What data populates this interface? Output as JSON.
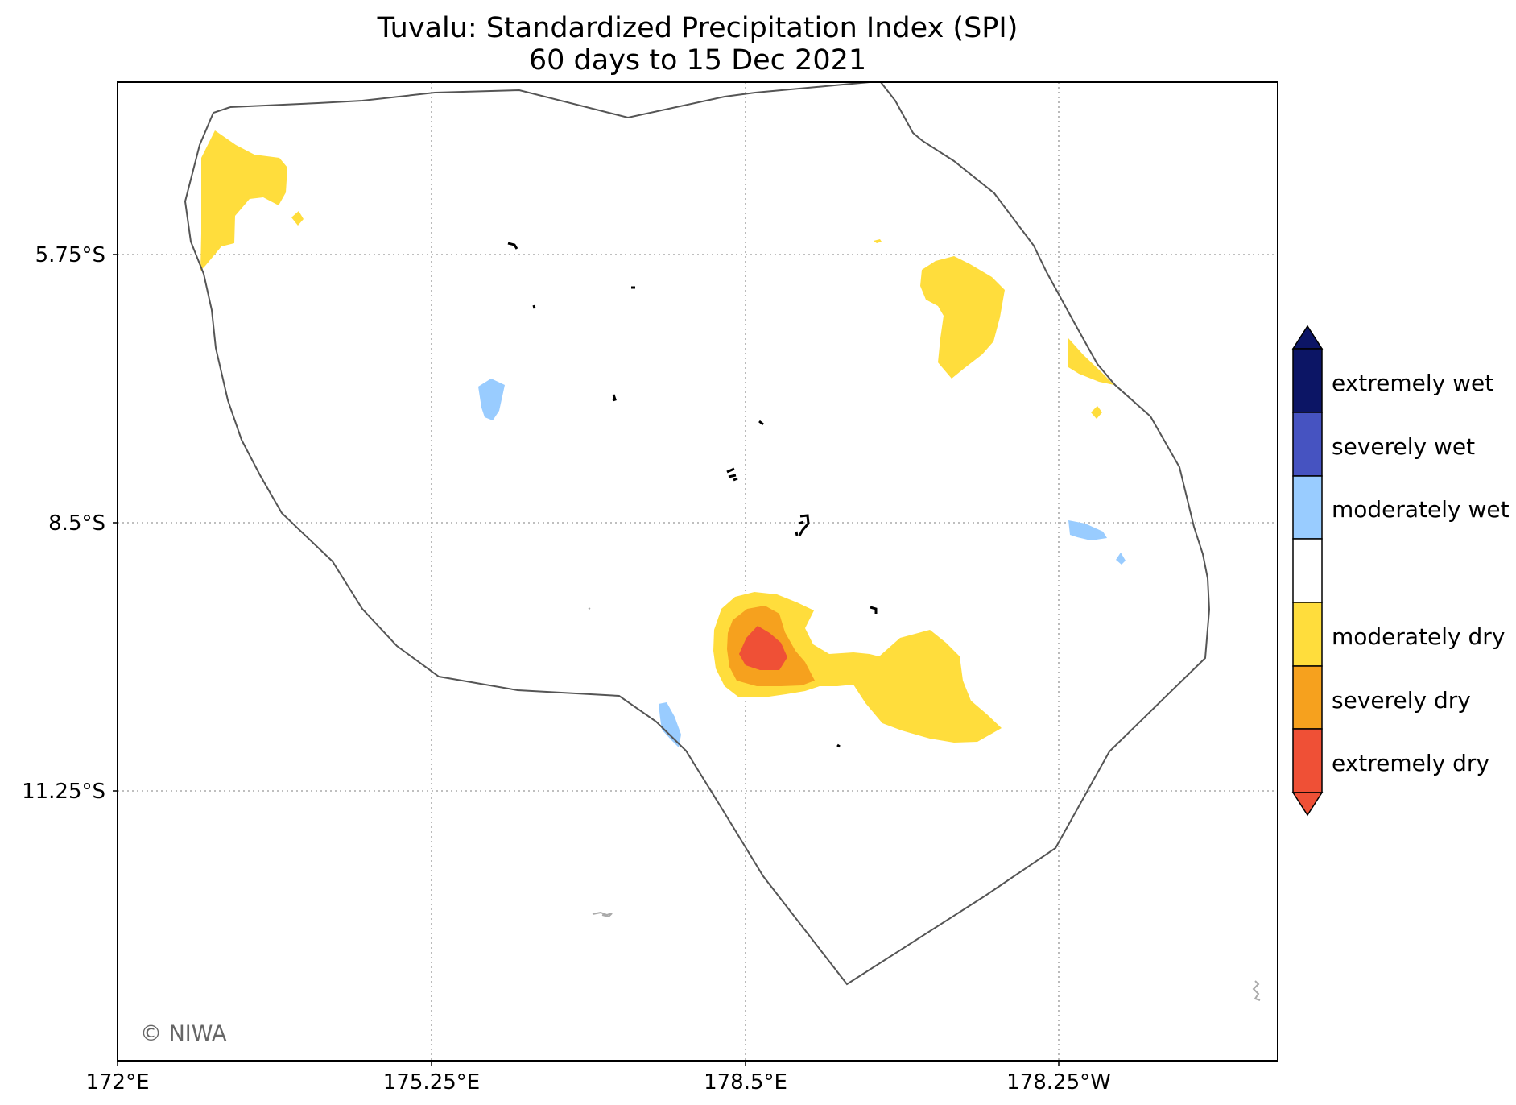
{
  "map": {
    "title_line1": "Tuvalu: Standardized Precipitation Index (SPI)",
    "title_line2": "60 days to 15 Dec 2021",
    "credit": "© NIWA",
    "x_ticks": [
      "172°E",
      "175.25°E",
      "178.5°E",
      "178.25°W"
    ],
    "y_ticks": [
      "5.75°S",
      "8.5°S",
      "11.25°S"
    ],
    "grid": true,
    "grid_style": "dotted",
    "legend_placement": "right"
  },
  "legend": {
    "entries": [
      {
        "label": "extremely wet",
        "color": "#0c1565"
      },
      {
        "label": "severely wet",
        "color": "#4653c1"
      },
      {
        "label": "moderately wet",
        "color": "#99ccff"
      },
      {
        "label": "",
        "color": "#ffffff"
      },
      {
        "label": "moderately dry",
        "color": "#ffdd3c"
      },
      {
        "label": "severely dry",
        "color": "#f6a11e"
      },
      {
        "label": "extremely dry",
        "color": "#ef5036"
      }
    ]
  },
  "colors": {
    "eez_outline": "#555555",
    "island": "#000000",
    "grid": "#aaaaaa",
    "frame": "#000000"
  }
}
